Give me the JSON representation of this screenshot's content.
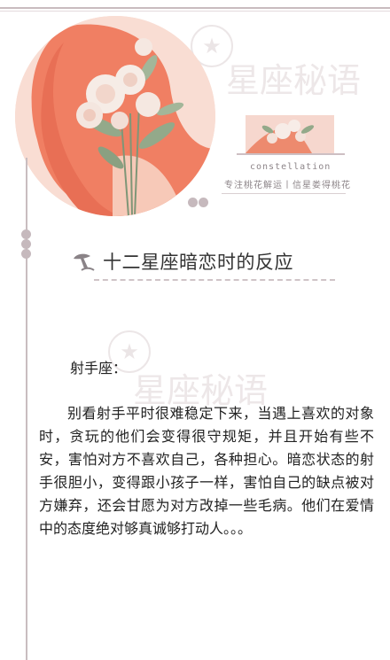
{
  "brand": {
    "tagline_en": "constellation",
    "tagline_cn": "专注桃花解运丨信星娄得桃花",
    "watermark_text": "星座秘语"
  },
  "article": {
    "title": "十二星座暗恋时的反应",
    "sign_label": "射手座：",
    "body": "别看射手平时很难稳定下来，当遇上喜欢的对象时，贪玩的他们会变得很守规矩，并且开始有些不安，害怕对方不喜欢自己，各种担心。暗恋状态的射手很胆小，变得跟小孩子一样，害怕自己的缺点被对方嫌弃，还会甘愿为对方改掉一些毛病。他们在爱情中的态度绝对够真诚够打动人。。。"
  },
  "colors": {
    "accent_line": "#c9bdc0",
    "hero_bg": "#f8dcd2",
    "hair": "#f07f63",
    "peony": "#f6ece6",
    "leaf": "#93a98a"
  },
  "icons": {
    "title_icon": "mushroom-icon",
    "watermark_icon": "star-circle-icon"
  }
}
